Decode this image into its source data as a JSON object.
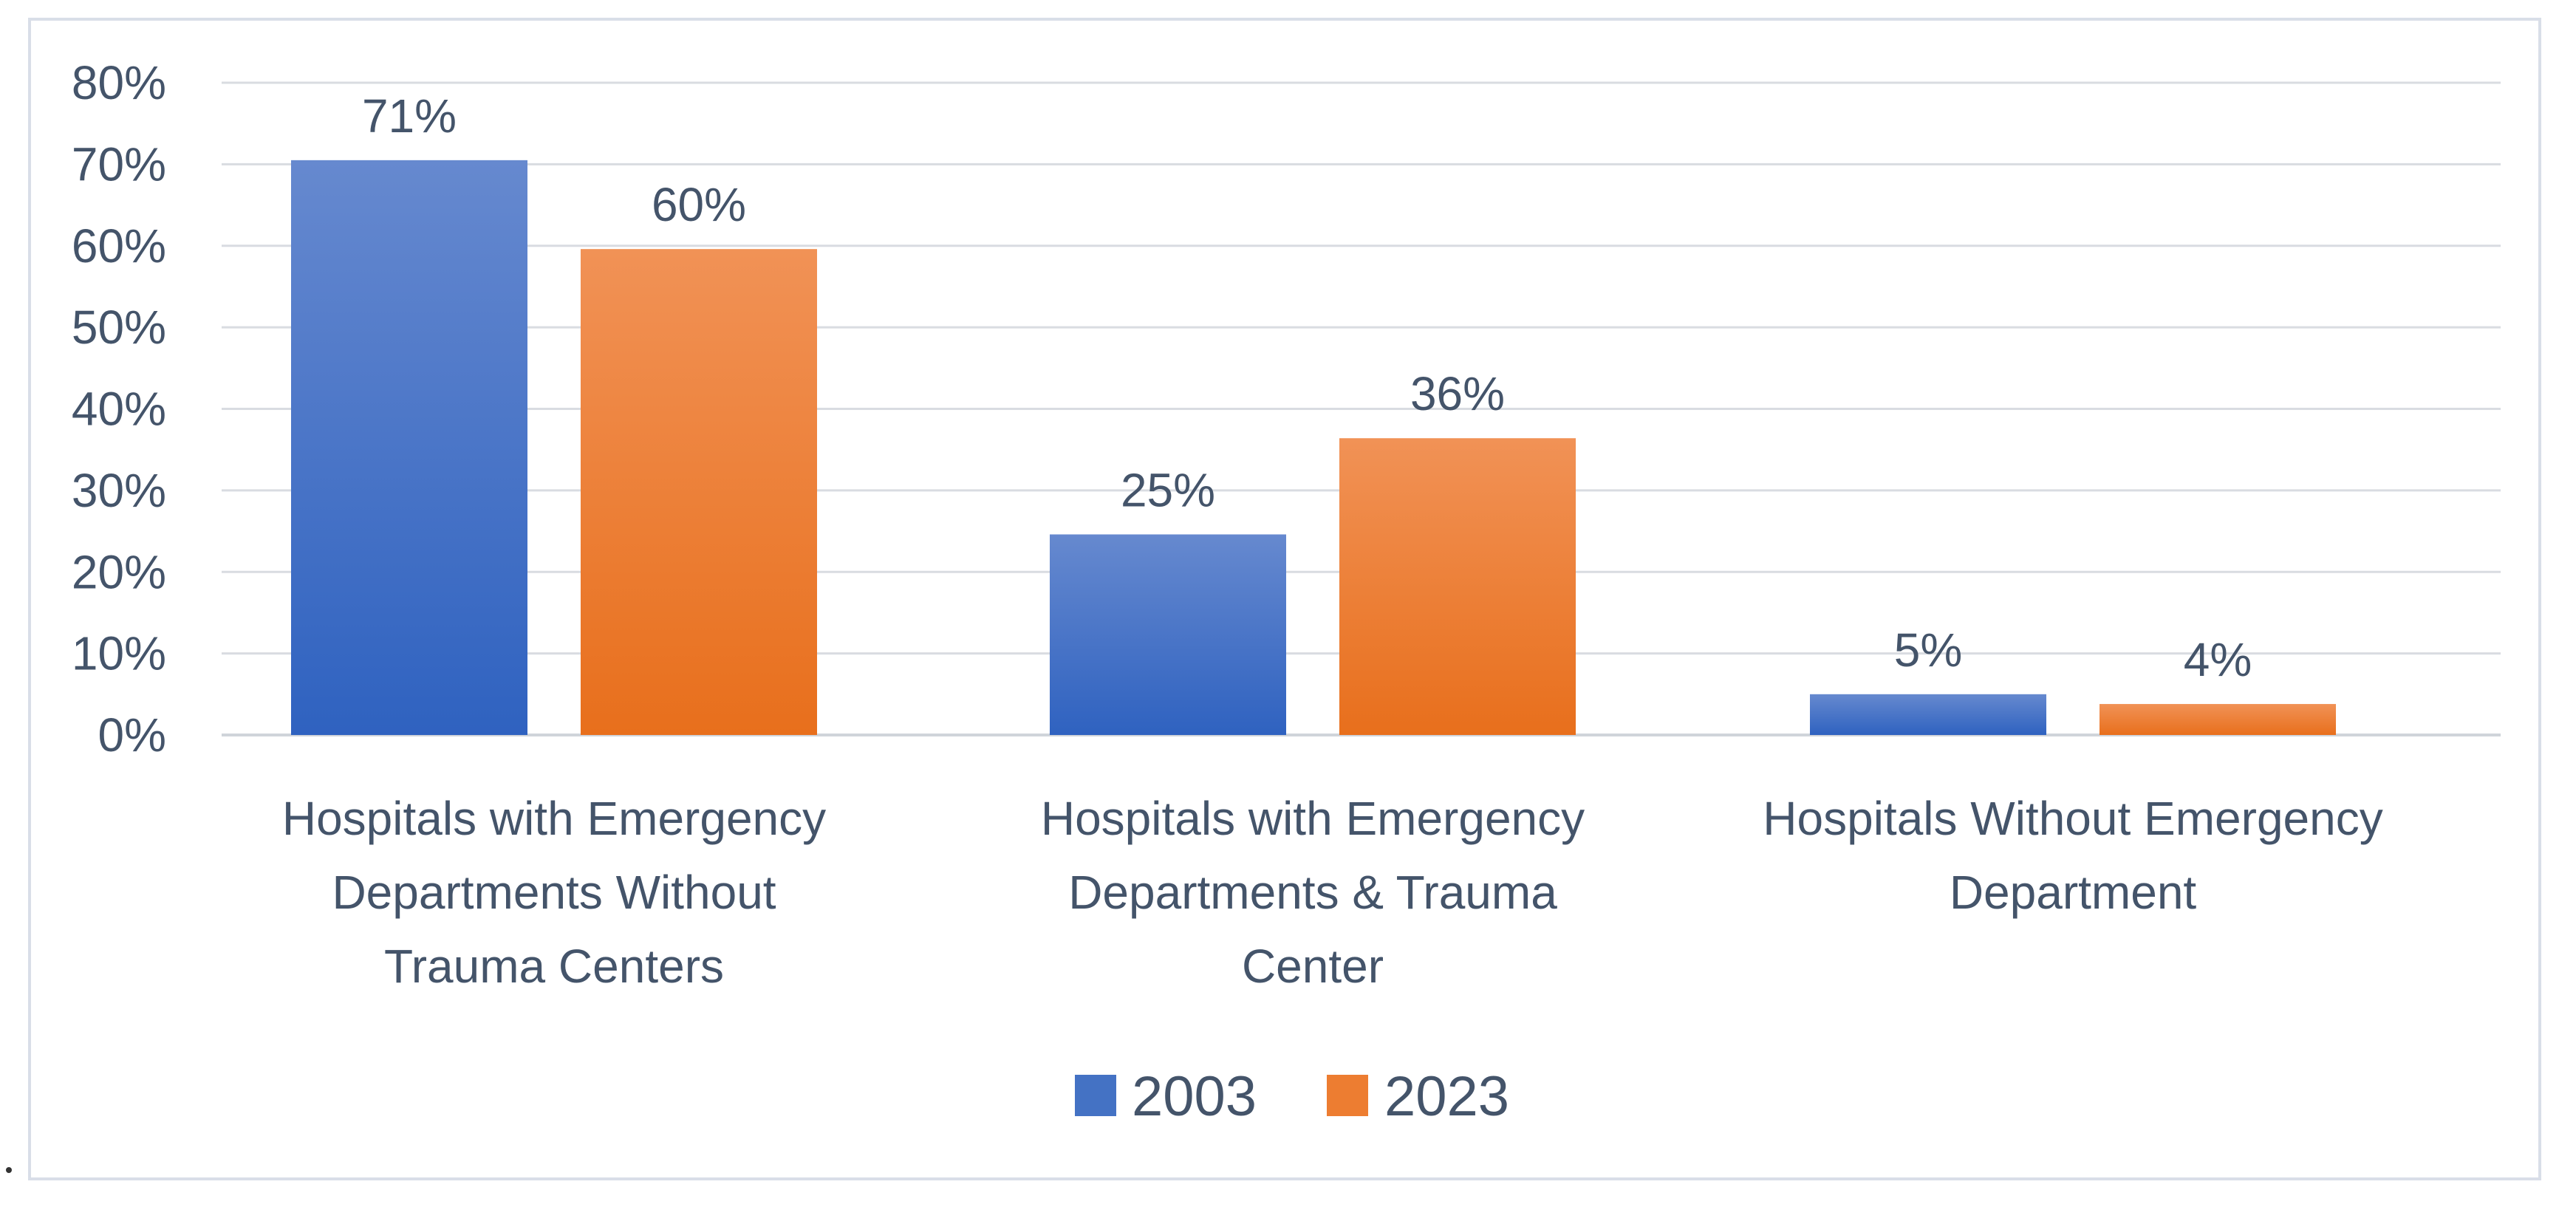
{
  "chart_data": {
    "type": "bar",
    "title": "",
    "xlabel": "",
    "ylabel": "",
    "ylim": [
      0,
      80
    ],
    "y_ticks": [
      "0%",
      "10%",
      "20%",
      "30%",
      "40%",
      "50%",
      "60%",
      "70%",
      "80%"
    ],
    "grid": true,
    "legend_position": "bottom",
    "categories": [
      [
        "Hospitals with Emergency",
        "Departments Without",
        "Trauma Centers"
      ],
      [
        "Hospitals with Emergency",
        "Departments &  Trauma",
        "Center"
      ],
      [
        "Hospitals Without Emergency",
        "Department"
      ]
    ],
    "series": [
      {
        "name": "2003",
        "color": "#4472c4",
        "values": [
          71,
          25,
          5
        ],
        "plot_values": [
          70.5,
          24.6,
          5.0
        ],
        "labels": [
          "71%",
          "25%",
          "5%"
        ]
      },
      {
        "name": "2023",
        "color": "#ed7d31",
        "values": [
          60,
          36,
          4
        ],
        "plot_values": [
          59.6,
          36.4,
          3.8
        ],
        "labels": [
          "60%",
          "36%",
          "4%"
        ]
      }
    ]
  },
  "footnote_mark": "."
}
